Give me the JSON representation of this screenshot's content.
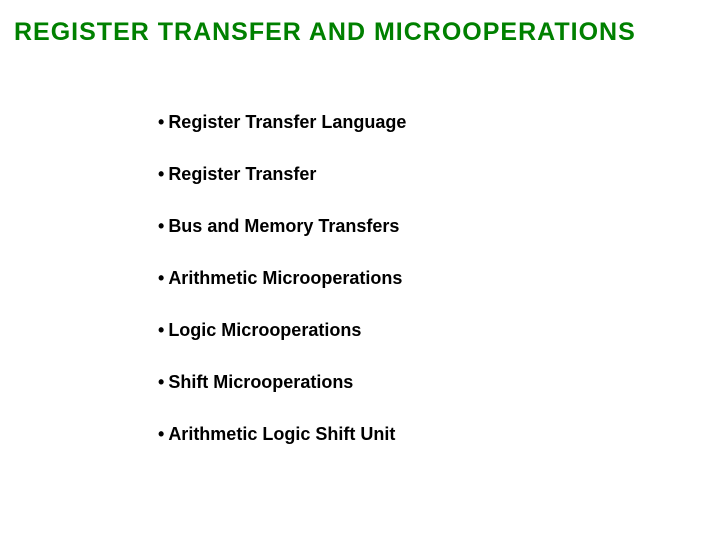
{
  "title": {
    "text": "REGISTER  TRANSFER  AND  MICROOPERATIONS",
    "color": "#008000",
    "fontsize": 25
  },
  "bullets": {
    "items": [
      "Register Transfer Language",
      "Register Transfer",
      "Bus and Memory Transfers",
      "Arithmetic Microoperations",
      "Logic Microoperations",
      "Shift Microoperations",
      "Arithmetic Logic Shift Unit"
    ],
    "color": "#000000",
    "fontsize": 18,
    "marker": "•",
    "line_spacing": 31
  },
  "background_color": "#ffffff"
}
